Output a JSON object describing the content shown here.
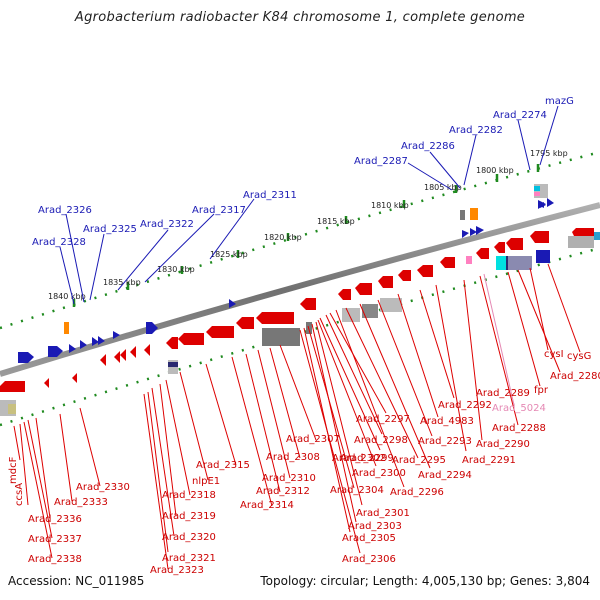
{
  "title": "Agrobacterium radiobacter K84 chromosome 1, complete genome",
  "accession_text": "Accession: NC_011985",
  "summary_text": "Topology: circular; Length: 4,005,130 bp; Genes: 3,804",
  "colors": {
    "forward_gene": "#1a1ab4",
    "reverse_gene": "#dd0000",
    "highlight_gene": "#e589b4",
    "tick_green": "#1f8a1f",
    "backbone": "#808080"
  },
  "scale_ticks": [
    "1795 kbp",
    "1800 kbp",
    "1805 kbp",
    "1810 kbp",
    "1815 kbp",
    "1820 kbp",
    "1825 kbp",
    "1830 kbp",
    "1835 kbp",
    "1840 kbp"
  ],
  "blue_labels": [
    "mazG",
    "Arad_2274",
    "Arad_2282",
    "Arad_2286",
    "Arad_2287",
    "Arad_2311",
    "Arad_2317",
    "Arad_2322",
    "Arad_2325",
    "Arad_2326",
    "Arad_2328"
  ],
  "red_labels": [
    "cysG",
    "cysI",
    "Arad_2280",
    "fpr",
    "Arad_2289",
    "Arad_5024",
    "Arad_2288",
    "Arad_2290",
    "Arad_2291",
    "Arad_2292",
    "Arad_4983",
    "Arad_2293",
    "Arad_2294",
    "Arad_2295",
    "Arad_2296",
    "Arad_2297",
    "Arad_2298",
    "Arad_2299",
    "Arad_2300",
    "Arad_2301",
    "Arad_2302",
    "Arad_2303",
    "Arad_2304",
    "Arad_2305",
    "Arad_2306",
    "Arad_2307",
    "Arad_2308",
    "Arad_2310",
    "Arad_2312",
    "Arad_2314",
    "Arad_2315",
    "nlpE1",
    "Arad_2318",
    "Arad_2319",
    "Arad_2320",
    "Arad_2321",
    "Arad_2323",
    "Arad_2330",
    "Arad_2333",
    "Arad_2336",
    "Arad_2337",
    "Arad_2338",
    "ccsA",
    "mdcF"
  ]
}
